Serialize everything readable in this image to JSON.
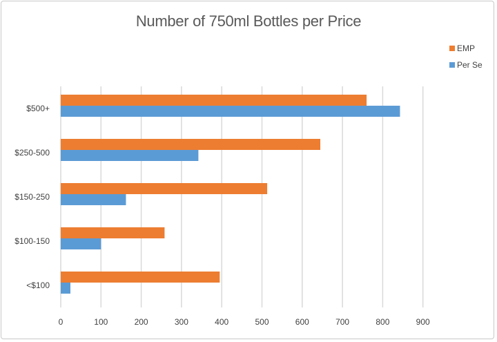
{
  "chart_data": {
    "type": "bar",
    "orientation": "horizontal",
    "title": "Number of 750ml Bottles per Price",
    "xlabel": "",
    "ylabel": "",
    "categories": [
      "$500+",
      "$250-500",
      "$150-250",
      "$100-150",
      "<$100"
    ],
    "series": [
      {
        "name": "EMP",
        "color": "#ed7d31",
        "values": [
          760,
          645,
          513,
          258,
          395
        ]
      },
      {
        "name": "Per Se",
        "color": "#5b9bd5",
        "values": [
          843,
          342,
          162,
          100,
          24
        ]
      }
    ],
    "xlim": [
      0,
      900
    ],
    "xticks": [
      0,
      100,
      200,
      300,
      400,
      500,
      600,
      700,
      800,
      900
    ],
    "grid": true,
    "legend_position": "top-right"
  }
}
